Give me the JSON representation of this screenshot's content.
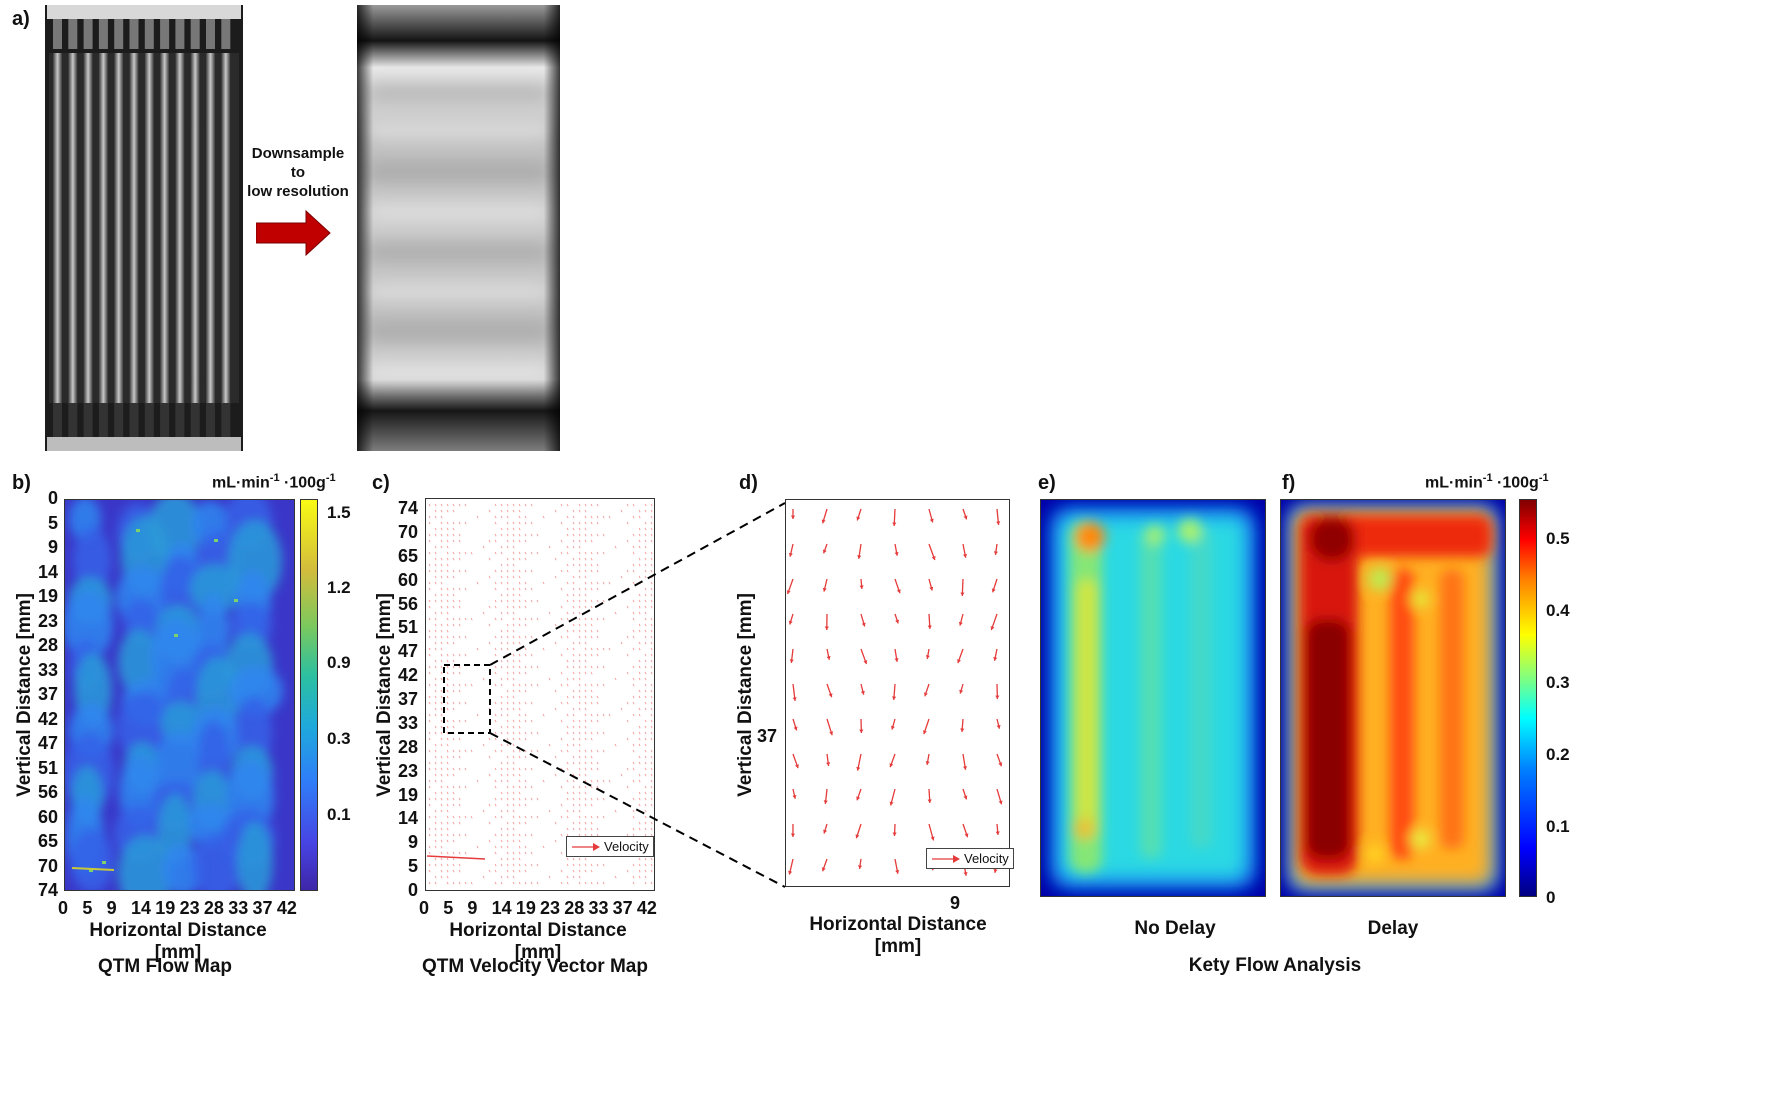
{
  "panel_a": {
    "label": "a)",
    "arrow_text_line1": "Downsample",
    "arrow_text_line2": "to",
    "arrow_text_line3": "low resolution"
  },
  "panel_b": {
    "label": "b)",
    "unit": "mL·min",
    "unit_exp1": "-1",
    "unit_mid": " ·100g",
    "unit_exp2": "-1",
    "caption": "QTM Flow Map",
    "colorbar_ticks": [
      "1.5",
      "1.2",
      "0.9",
      "0.3",
      "0.1"
    ]
  },
  "panel_c": {
    "label": "c)",
    "caption": "QTM Velocity Vector Map",
    "legend": "Velocity"
  },
  "panel_d": {
    "label": "d)",
    "legend": "Velocity",
    "xtick": "9",
    "ytick": "37"
  },
  "panel_e": {
    "label": "e)",
    "caption": "No Delay"
  },
  "panel_f": {
    "label": "f)",
    "caption": "Delay",
    "unit": "mL·min",
    "unit_exp1": "-1",
    "unit_mid": " ·100g",
    "unit_exp2": "-1",
    "colorbar_ticks": [
      "0.5",
      "0.4",
      "0.3",
      "0.2",
      "0.1",
      "0"
    ]
  },
  "kety_caption": "Kety Flow Analysis",
  "axes": {
    "xlabel": "Horizontal Distance [mm]",
    "ylabel": "Vertical Distance [mm]",
    "b_yticks": [
      "0",
      "5",
      "9",
      "14",
      "19",
      "23",
      "28",
      "33",
      "37",
      "42",
      "47",
      "51",
      "56",
      "60",
      "65",
      "70",
      "74"
    ],
    "c_yticks": [
      "74",
      "70",
      "65",
      "60",
      "56",
      "51",
      "47",
      "42",
      "37",
      "33",
      "28",
      "23",
      "19",
      "14",
      "9",
      "5",
      "0"
    ],
    "xticks": [
      "0",
      "5",
      "9",
      "14",
      "19",
      "23",
      "28",
      "33",
      "37",
      "42"
    ]
  }
}
